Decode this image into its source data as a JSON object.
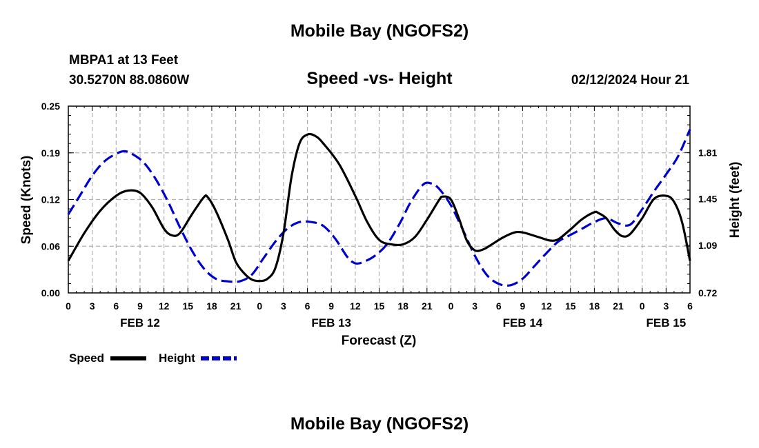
{
  "header": {
    "title": "Mobile Bay (NGOFS2)",
    "station": "MBPA1 at 13 Feet",
    "coords": "30.5270N  88.0860W",
    "subtitle": "Speed -vs- Height",
    "datetime": "02/12/2024 Hour 21"
  },
  "footer": {
    "title": "Mobile Bay (NGOFS2)"
  },
  "legend": {
    "speed_label": "Speed",
    "height_label": "Height"
  },
  "colors": {
    "speed": "#000000",
    "height": "#0000cc",
    "grid": "#b0b0b0"
  },
  "chart_data": {
    "type": "line",
    "title": "Speed -vs- Height",
    "xlabel": "Forecast (Z)",
    "ylabel_left": "Speed (Knots)",
    "ylabel_right": "Height (feet)",
    "x_range_hours": [
      0,
      78
    ],
    "x_tick_hours": [
      0,
      3,
      6,
      9,
      12,
      15,
      18,
      21,
      24,
      27,
      30,
      33,
      36,
      39,
      42,
      45,
      48,
      51,
      54,
      57,
      60,
      63,
      66,
      69,
      72,
      75,
      78
    ],
    "x_tick_labels": [
      "0",
      "3",
      "6",
      "9",
      "12",
      "15",
      "18",
      "21",
      "0",
      "3",
      "6",
      "9",
      "12",
      "15",
      "18",
      "21",
      "0",
      "3",
      "6",
      "9",
      "12",
      "15",
      "18",
      "21",
      "0",
      "3",
      "6"
    ],
    "date_labels": [
      {
        "label": "FEB 12",
        "hour": 9
      },
      {
        "label": "FEB 13",
        "hour": 33
      },
      {
        "label": "FEB 14",
        "hour": 57
      },
      {
        "label": "FEB 15",
        "hour": 75
      }
    ],
    "y_left_range": [
      0,
      0.25
    ],
    "y_left_ticks": [
      "0.00",
      "0.06",
      "0.12",
      "0.19",
      "0.25"
    ],
    "y_right_range": [
      0.72,
      2.17
    ],
    "y_right_ticks": [
      {
        "value": 0.72,
        "label": "0.72"
      },
      {
        "value": 1.09,
        "label": "1.09"
      },
      {
        "value": 1.45,
        "label": "1.45"
      },
      {
        "value": 1.81,
        "label": "1.81"
      }
    ],
    "series": [
      {
        "name": "Speed",
        "axis": "left",
        "style": "solid",
        "points": [
          [
            0,
            0.043
          ],
          [
            2,
            0.08
          ],
          [
            4,
            0.11
          ],
          [
            6,
            0.13
          ],
          [
            7.5,
            0.137
          ],
          [
            9,
            0.134
          ],
          [
            10.5,
            0.115
          ],
          [
            12,
            0.086
          ],
          [
            13,
            0.077
          ],
          [
            14,
            0.08
          ],
          [
            15.5,
            0.105
          ],
          [
            17,
            0.128
          ],
          [
            17.5,
            0.128
          ],
          [
            18.5,
            0.11
          ],
          [
            20,
            0.072
          ],
          [
            21,
            0.042
          ],
          [
            22,
            0.027
          ],
          [
            23,
            0.018
          ],
          [
            24,
            0.016
          ],
          [
            25,
            0.019
          ],
          [
            26,
            0.034
          ],
          [
            27,
            0.08
          ],
          [
            28,
            0.155
          ],
          [
            29,
            0.2
          ],
          [
            30,
            0.212
          ],
          [
            31,
            0.21
          ],
          [
            32,
            0.2
          ],
          [
            34,
            0.172
          ],
          [
            36,
            0.13
          ],
          [
            37.5,
            0.095
          ],
          [
            39,
            0.071
          ],
          [
            40.5,
            0.065
          ],
          [
            42,
            0.065
          ],
          [
            43.5,
            0.075
          ],
          [
            45,
            0.098
          ],
          [
            46.5,
            0.124
          ],
          [
            47,
            0.129
          ],
          [
            48,
            0.125
          ],
          [
            49,
            0.1
          ],
          [
            50,
            0.07
          ],
          [
            51,
            0.057
          ],
          [
            52,
            0.058
          ],
          [
            53,
            0.064
          ],
          [
            54.5,
            0.074
          ],
          [
            56,
            0.081
          ],
          [
            57,
            0.081
          ],
          [
            58,
            0.078
          ],
          [
            59.5,
            0.073
          ],
          [
            60.5,
            0.07
          ],
          [
            61.5,
            0.072
          ],
          [
            63,
            0.085
          ],
          [
            64.5,
            0.099
          ],
          [
            66,
            0.108
          ],
          [
            66.5,
            0.107
          ],
          [
            67.5,
            0.1
          ],
          [
            68.5,
            0.085
          ],
          [
            69.5,
            0.076
          ],
          [
            70.5,
            0.079
          ],
          [
            72,
            0.1
          ],
          [
            73.5,
            0.126
          ],
          [
            75,
            0.13
          ],
          [
            76,
            0.122
          ],
          [
            77,
            0.095
          ],
          [
            78,
            0.043
          ]
        ]
      },
      {
        "name": "Height",
        "axis": "right",
        "style": "dashed",
        "points": [
          [
            0,
            1.33
          ],
          [
            1.5,
            1.48
          ],
          [
            3,
            1.63
          ],
          [
            4.5,
            1.74
          ],
          [
            6,
            1.8
          ],
          [
            7,
            1.82
          ],
          [
            8,
            1.8
          ],
          [
            9.5,
            1.73
          ],
          [
            11,
            1.6
          ],
          [
            12.5,
            1.43
          ],
          [
            14,
            1.23
          ],
          [
            15.5,
            1.05
          ],
          [
            17,
            0.91
          ],
          [
            18.5,
            0.83
          ],
          [
            20,
            0.81
          ],
          [
            21.5,
            0.81
          ],
          [
            23,
            0.86
          ],
          [
            24.5,
            0.99
          ],
          [
            26,
            1.12
          ],
          [
            27.5,
            1.22
          ],
          [
            29,
            1.27
          ],
          [
            30.5,
            1.27
          ],
          [
            32,
            1.24
          ],
          [
            33.5,
            1.14
          ],
          [
            35,
            1.0
          ],
          [
            36,
            0.95
          ],
          [
            37,
            0.96
          ],
          [
            38.5,
            1.01
          ],
          [
            40,
            1.1
          ],
          [
            41.5,
            1.25
          ],
          [
            43,
            1.43
          ],
          [
            44.5,
            1.56
          ],
          [
            45.5,
            1.57
          ],
          [
            46.5,
            1.53
          ],
          [
            48,
            1.4
          ],
          [
            49.5,
            1.21
          ],
          [
            51,
            1.01
          ],
          [
            52.5,
            0.86
          ],
          [
            54,
            0.79
          ],
          [
            55.5,
            0.78
          ],
          [
            57,
            0.83
          ],
          [
            58.5,
            0.93
          ],
          [
            60,
            1.03
          ],
          [
            61.5,
            1.12
          ],
          [
            63,
            1.17
          ],
          [
            64.5,
            1.22
          ],
          [
            66,
            1.27
          ],
          [
            67.5,
            1.3
          ],
          [
            69,
            1.26
          ],
          [
            70.5,
            1.25
          ],
          [
            72,
            1.37
          ],
          [
            73.5,
            1.51
          ],
          [
            75,
            1.64
          ],
          [
            76.5,
            1.78
          ],
          [
            78,
            1.99
          ]
        ]
      }
    ]
  }
}
